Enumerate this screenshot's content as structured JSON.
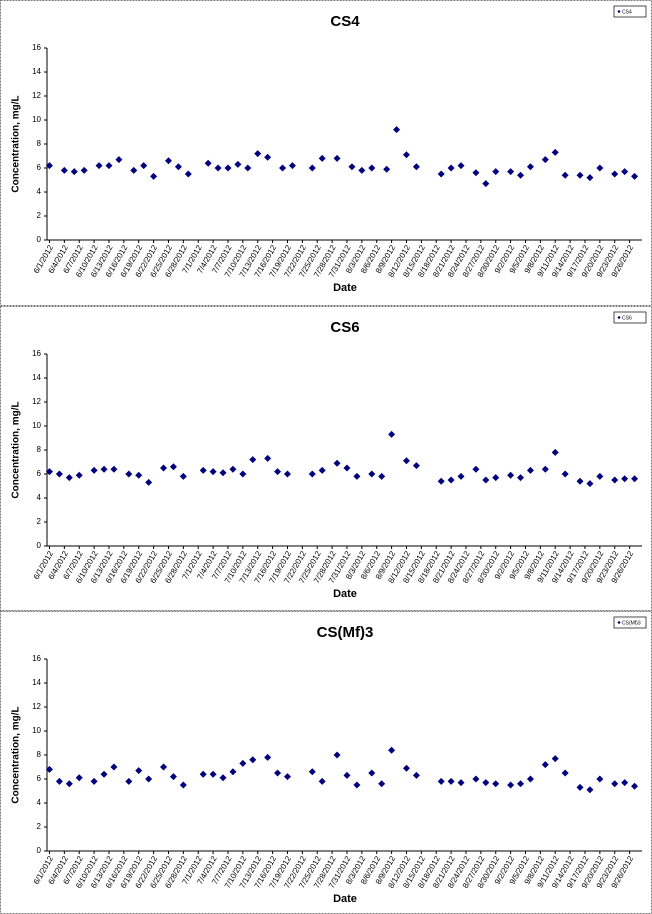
{
  "chart_data": [
    {
      "type": "scatter",
      "title": "CS4",
      "x_label": "Date",
      "y_label": "Concentration, mg/L",
      "legend": "top-right",
      "grid": false,
      "ylim": [
        0,
        16
      ],
      "yticks": [
        0,
        2,
        4,
        6,
        8,
        10,
        12,
        14,
        16
      ],
      "categories": [
        "6/1/2012",
        null,
        null,
        "6/4/2012",
        null,
        null,
        "6/7/2012",
        null,
        null,
        "6/10/2012",
        null,
        null,
        "6/13/2012",
        null,
        null,
        "6/16/2012",
        null,
        null,
        "6/19/2012",
        null,
        null,
        "6/22/2012",
        null,
        null,
        "6/25/2012",
        null,
        null,
        "6/28/2012",
        null,
        null,
        "7/1/2012",
        null,
        null,
        "7/4/2012",
        null,
        null,
        "7/7/2012",
        null,
        null,
        "7/10/2012",
        null,
        null,
        "7/13/2012",
        null,
        null,
        "7/16/2012",
        null,
        null,
        "7/19/2012",
        null,
        null,
        "7/22/2012",
        null,
        null,
        "7/25/2012",
        null,
        null,
        "7/28/2012",
        null,
        null,
        "7/31/2012",
        null,
        null,
        "8/3/2012",
        null,
        null,
        "8/6/2012",
        null,
        null,
        "8/9/2012",
        null,
        null,
        "8/12/2012",
        null,
        null,
        "8/15/2012",
        null,
        null,
        "8/18/2012",
        null,
        null,
        "8/21/2012",
        null,
        null,
        "8/24/2012",
        null,
        null,
        "8/27/2012",
        null,
        null,
        "8/30/2012",
        null,
        null,
        "9/2/2012",
        null,
        null,
        "9/5/2012",
        null,
        null,
        "9/8/2012",
        null,
        null,
        "9/11/2012",
        null,
        null,
        "9/14/2012",
        null,
        null,
        "9/17/2012",
        null,
        null,
        "9/20/2012",
        null,
        null,
        "9/23/2012",
        null,
        null,
        "9/26/2012",
        null,
        null
      ],
      "series": [
        {
          "name": "CS4",
          "color": "#00007f",
          "values": [
            6.2,
            null,
            null,
            5.8,
            null,
            5.7,
            null,
            5.8,
            null,
            null,
            6.2,
            null,
            6.2,
            null,
            6.7,
            null,
            null,
            5.8,
            null,
            6.2,
            null,
            5.3,
            null,
            null,
            6.6,
            null,
            6.1,
            null,
            5.5,
            null,
            null,
            null,
            6.4,
            null,
            6.0,
            null,
            6.0,
            null,
            6.3,
            null,
            6.0,
            null,
            7.2,
            null,
            6.9,
            null,
            null,
            6.0,
            null,
            6.2,
            null,
            null,
            null,
            6.0,
            null,
            6.8,
            null,
            null,
            6.8,
            null,
            null,
            6.1,
            null,
            5.8,
            null,
            6.0,
            null,
            null,
            5.9,
            null,
            9.2,
            null,
            7.1,
            null,
            6.1,
            null,
            null,
            null,
            null,
            5.5,
            null,
            6.0,
            null,
            6.2,
            null,
            null,
            5.6,
            null,
            4.7,
            null,
            5.7,
            null,
            null,
            5.7,
            null,
            5.4,
            null,
            6.1,
            null,
            null,
            6.7,
            null,
            7.3,
            null,
            5.4,
            null,
            null,
            5.4,
            null,
            5.2,
            null,
            6.0,
            null,
            null,
            5.5,
            null,
            5.7,
            null,
            5.3,
            null
          ]
        }
      ]
    },
    {
      "type": "scatter",
      "title": "CS6",
      "x_label": "Date",
      "y_label": "Concentration, mg/L",
      "legend": "top-right",
      "grid": false,
      "ylim": [
        0,
        16
      ],
      "yticks": [
        0,
        2,
        4,
        6,
        8,
        10,
        12,
        14,
        16
      ],
      "categories": [
        "6/1/2012",
        null,
        null,
        "6/4/2012",
        null,
        null,
        "6/7/2012",
        null,
        null,
        "6/10/2012",
        null,
        null,
        "6/13/2012",
        null,
        null,
        "6/16/2012",
        null,
        null,
        "6/19/2012",
        null,
        null,
        "6/22/2012",
        null,
        null,
        "6/25/2012",
        null,
        null,
        "6/28/2012",
        null,
        null,
        "7/1/2012",
        null,
        null,
        "7/4/2012",
        null,
        null,
        "7/7/2012",
        null,
        null,
        "7/10/2012",
        null,
        null,
        "7/13/2012",
        null,
        null,
        "7/16/2012",
        null,
        null,
        "7/19/2012",
        null,
        null,
        "7/22/2012",
        null,
        null,
        "7/25/2012",
        null,
        null,
        "7/28/2012",
        null,
        null,
        "7/31/2012",
        null,
        null,
        "8/3/2012",
        null,
        null,
        "8/6/2012",
        null,
        null,
        "8/9/2012",
        null,
        null,
        "8/12/2012",
        null,
        null,
        "8/15/2012",
        null,
        null,
        "8/18/2012",
        null,
        null,
        "8/21/2012",
        null,
        null,
        "8/24/2012",
        null,
        null,
        "8/27/2012",
        null,
        null,
        "8/30/2012",
        null,
        null,
        "9/2/2012",
        null,
        null,
        "9/5/2012",
        null,
        null,
        "9/8/2012",
        null,
        null,
        "9/11/2012",
        null,
        null,
        "9/14/2012",
        null,
        null,
        "9/17/2012",
        null,
        null,
        "9/20/2012",
        null,
        null,
        "9/23/2012",
        null,
        null,
        "9/26/2012",
        null,
        null
      ],
      "series": [
        {
          "name": "CS6",
          "color": "#00007f",
          "values": [
            6.2,
            null,
            6.0,
            null,
            5.7,
            null,
            5.9,
            null,
            null,
            6.3,
            null,
            6.4,
            null,
            6.4,
            null,
            null,
            6.0,
            null,
            5.9,
            null,
            5.3,
            null,
            null,
            6.5,
            null,
            6.6,
            null,
            5.8,
            null,
            null,
            null,
            6.3,
            null,
            6.2,
            null,
            6.1,
            null,
            6.4,
            null,
            6.0,
            null,
            7.2,
            null,
            null,
            7.3,
            null,
            6.2,
            null,
            6.0,
            null,
            null,
            null,
            null,
            6.0,
            null,
            6.3,
            null,
            null,
            6.9,
            null,
            6.5,
            null,
            5.8,
            null,
            null,
            6.0,
            null,
            5.8,
            null,
            9.3,
            null,
            null,
            7.1,
            null,
            6.7,
            null,
            null,
            null,
            null,
            5.4,
            null,
            5.5,
            null,
            5.8,
            null,
            null,
            6.4,
            null,
            5.5,
            null,
            5.7,
            null,
            null,
            5.9,
            null,
            5.7,
            null,
            6.3,
            null,
            null,
            6.4,
            null,
            7.8,
            null,
            6.0,
            null,
            null,
            5.4,
            null,
            5.2,
            null,
            5.8,
            null,
            null,
            5.5,
            null,
            5.6,
            null,
            5.6,
            null
          ]
        }
      ]
    },
    {
      "type": "scatter",
      "title": "CS(Mf)3",
      "x_label": "Date",
      "y_label": "Concentration, mg/L",
      "legend": "top-right",
      "grid": false,
      "ylim": [
        0,
        16
      ],
      "yticks": [
        0,
        2,
        4,
        6,
        8,
        10,
        12,
        14,
        16
      ],
      "categories": [
        "6/1/2012",
        null,
        null,
        "6/4/2012",
        null,
        null,
        "6/7/2012",
        null,
        null,
        "6/10/2012",
        null,
        null,
        "6/13/2012",
        null,
        null,
        "6/16/2012",
        null,
        null,
        "6/19/2012",
        null,
        null,
        "6/22/2012",
        null,
        null,
        "6/25/2012",
        null,
        null,
        "6/28/2012",
        null,
        null,
        "7/1/2012",
        null,
        null,
        "7/4/2012",
        null,
        null,
        "7/7/2012",
        null,
        null,
        "7/10/2012",
        null,
        null,
        "7/13/2012",
        null,
        null,
        "7/16/2012",
        null,
        null,
        "7/19/2012",
        null,
        null,
        "7/22/2012",
        null,
        null,
        "7/25/2012",
        null,
        null,
        "7/28/2012",
        null,
        null,
        "7/31/2012",
        null,
        null,
        "8/3/2012",
        null,
        null,
        "8/6/2012",
        null,
        null,
        "8/9/2012",
        null,
        null,
        "8/12/2012",
        null,
        null,
        "8/15/2012",
        null,
        null,
        "8/18/2012",
        null,
        null,
        "8/21/2012",
        null,
        null,
        "8/24/2012",
        null,
        null,
        "8/27/2012",
        null,
        null,
        "8/30/2012",
        null,
        null,
        "9/2/2012",
        null,
        null,
        "9/5/2012",
        null,
        null,
        "9/8/2012",
        null,
        null,
        "9/11/2012",
        null,
        null,
        "9/14/2012",
        null,
        null,
        "9/17/2012",
        null,
        null,
        "9/20/2012",
        null,
        null,
        "9/23/2012",
        null,
        null,
        "9/26/2012",
        null,
        null
      ],
      "series": [
        {
          "name": "CS(Mf)3",
          "color": "#00007f",
          "values": [
            6.8,
            null,
            5.8,
            null,
            5.6,
            null,
            6.1,
            null,
            null,
            5.8,
            null,
            6.4,
            null,
            7.0,
            null,
            null,
            5.8,
            null,
            6.7,
            null,
            6.0,
            null,
            null,
            7.0,
            null,
            6.2,
            null,
            5.5,
            null,
            null,
            null,
            6.4,
            null,
            6.4,
            null,
            6.1,
            null,
            6.6,
            null,
            7.3,
            null,
            7.6,
            null,
            null,
            7.8,
            null,
            6.5,
            null,
            6.2,
            null,
            null,
            null,
            null,
            6.6,
            null,
            5.8,
            null,
            null,
            8.0,
            null,
            6.3,
            null,
            5.5,
            null,
            null,
            6.5,
            null,
            5.6,
            null,
            8.4,
            null,
            null,
            6.9,
            null,
            6.3,
            null,
            null,
            null,
            null,
            5.8,
            null,
            5.8,
            null,
            5.7,
            null,
            null,
            6.0,
            null,
            5.7,
            null,
            5.6,
            null,
            null,
            5.5,
            null,
            5.6,
            null,
            6.0,
            null,
            null,
            7.2,
            null,
            7.7,
            null,
            6.5,
            null,
            null,
            5.3,
            null,
            5.1,
            null,
            6.0,
            null,
            null,
            5.6,
            null,
            5.7,
            null,
            5.4,
            null
          ]
        }
      ]
    }
  ]
}
